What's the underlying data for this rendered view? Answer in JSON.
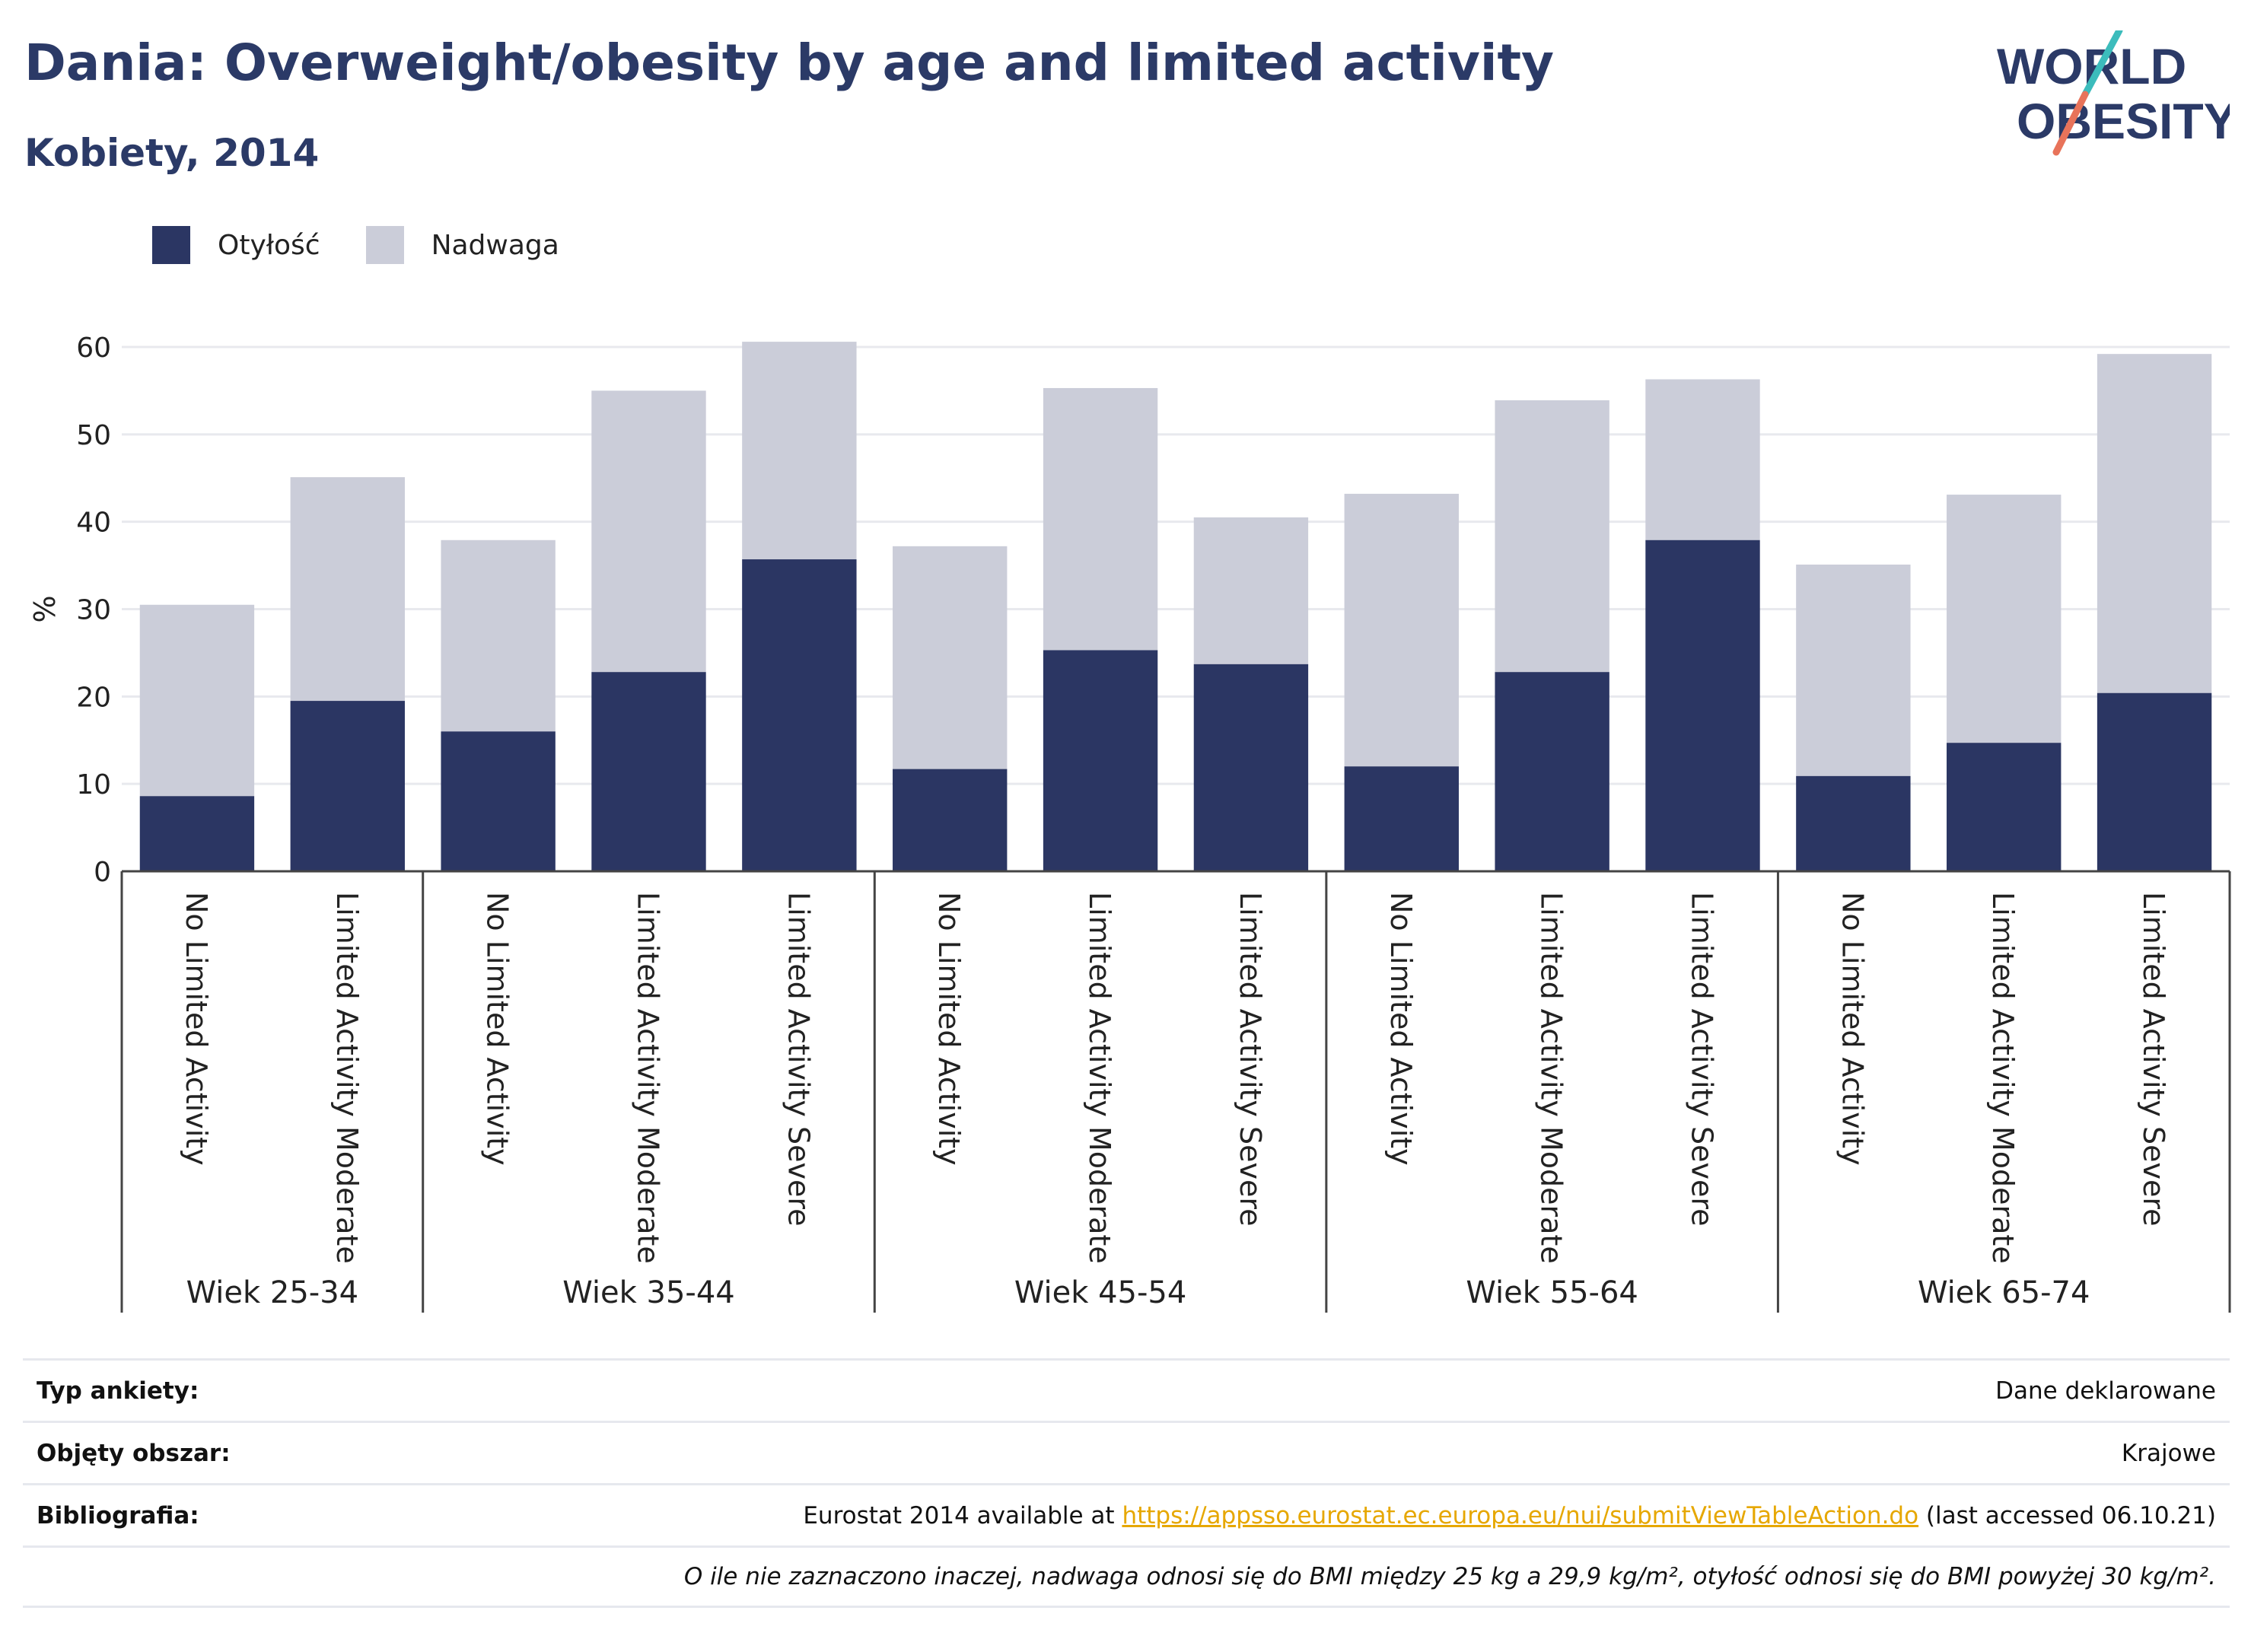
{
  "title": "Dania: Overweight/obesity by age and limited activity",
  "subtitle": "Kobiety, 2014",
  "logo": {
    "line1": "WORLD",
    "line2": "OBESITY"
  },
  "colors": {
    "obesity": "#2b3663",
    "overweight": "#cbcdd9",
    "title": "#2b3a67",
    "link": "#e6a700",
    "logo_teal": "#3cbcbc",
    "logo_red": "#e8735a"
  },
  "legend": [
    {
      "label": "Otyłość",
      "color": "#2b3663"
    },
    {
      "label": "Nadwaga",
      "color": "#cbcdd9"
    }
  ],
  "chart_data": {
    "type": "bar",
    "stacked": true,
    "ylabel": "%",
    "ylim": [
      0,
      60
    ],
    "yticks": [
      0,
      10,
      20,
      30,
      40,
      50,
      60
    ],
    "grid": true,
    "legend_position": "top-left",
    "groups": [
      {
        "label": "Wiek 25-34",
        "categories": [
          "No Limited Activity",
          "Limited Activity Moderate"
        ]
      },
      {
        "label": "Wiek 35-44",
        "categories": [
          "No Limited Activity",
          "Limited Activity Moderate",
          "Limited Activity Severe"
        ]
      },
      {
        "label": "Wiek 45-54",
        "categories": [
          "No Limited Activity",
          "Limited Activity Moderate",
          "Limited Activity Severe"
        ]
      },
      {
        "label": "Wiek 55-64",
        "categories": [
          "No Limited Activity",
          "Limited Activity Moderate",
          "Limited Activity Severe"
        ]
      },
      {
        "label": "Wiek 65-74",
        "categories": [
          "No Limited Activity",
          "Limited Activity Moderate",
          "Limited Activity Severe"
        ]
      }
    ],
    "series": [
      {
        "name": "Otyłość",
        "values": [
          8.6,
          19.5,
          16.0,
          22.8,
          35.7,
          11.7,
          25.3,
          23.7,
          12.0,
          22.8,
          37.9,
          10.9,
          14.7,
          20.4
        ]
      },
      {
        "name": "Nadwaga",
        "values": [
          21.9,
          25.6,
          21.9,
          32.2,
          24.9,
          25.5,
          30.0,
          16.8,
          31.2,
          31.1,
          18.4,
          24.2,
          28.4,
          38.8
        ]
      }
    ]
  },
  "footer": {
    "survey_label": "Typ ankiety:",
    "survey_value": "Dane deklarowane",
    "area_label": "Objęty obszar:",
    "area_value": "Krajowe",
    "bib_label": "Bibliografia:",
    "bib_prefix": "Eurostat 2014 available at ",
    "bib_link": "https://appsso.eurostat.ec.europa.eu/nui/submitViewTableAction.do",
    "bib_suffix": " (last accessed 06.10.21)",
    "note": "O ile nie zaznaczono inaczej, nadwaga odnosi się do BMI między 25 kg a 29,9 kg/m², otyłość odnosi się do BMI powyżej 30 kg/m²."
  }
}
